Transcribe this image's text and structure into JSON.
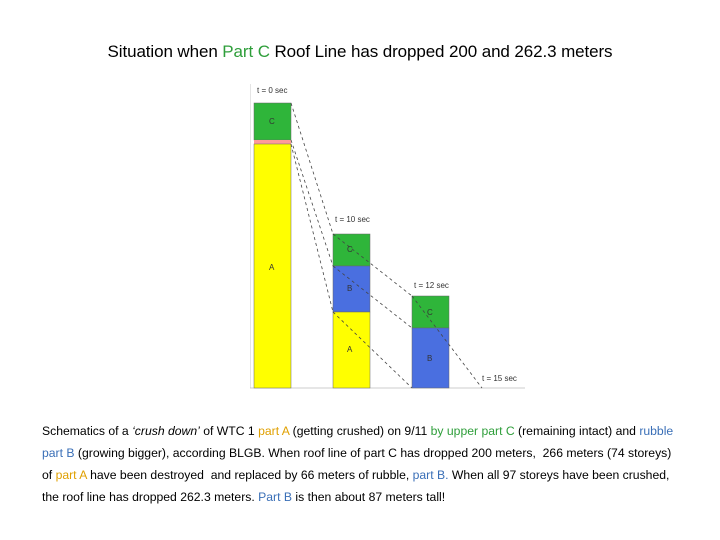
{
  "title": {
    "part1": "Situation when ",
    "part2": "Part C",
    "part3": " Roof Line has dropped 200 and 262.3 meters"
  },
  "diagram": {
    "t0": "t = 0 sec",
    "t10": "t = 10 sec",
    "t12": "t = 12 sec",
    "t15": "t = 15 sec",
    "labelC": "C",
    "labelA": "A",
    "labelB": "B"
  },
  "caption": {
    "s1": "Schematics of a ",
    "s2": "‘crush down’",
    "s3": " of WTC 1 ",
    "s4": "part A",
    "s5": " (getting crushed) on 9/11 ",
    "s6": "by upper part C",
    "s7": " (remaining intact) and ",
    "s8": "rubble part B",
    "s9": " (growing bigger), according BLGB. When roof line of part C has dropped 200 meters,  266 meters (74 storeys) of ",
    "s10": "part A",
    "s11": " have been destroyed  and replaced by 66 meters of rubble, ",
    "s12": "part B.",
    "s13": " When all 97 storeys have been crushed, the roof line has dropped 262.3 meters. ",
    "s14": "Part B",
    "s15": " is then about 87 meters tall!"
  },
  "colors": {
    "partA": "#ffff00",
    "partB": "#4a6fe0",
    "partC": "#2fb53a",
    "accentGreen": "#2e9e3a",
    "accentOrange": "#e0a000",
    "accentBlue": "#3a6fb7"
  }
}
